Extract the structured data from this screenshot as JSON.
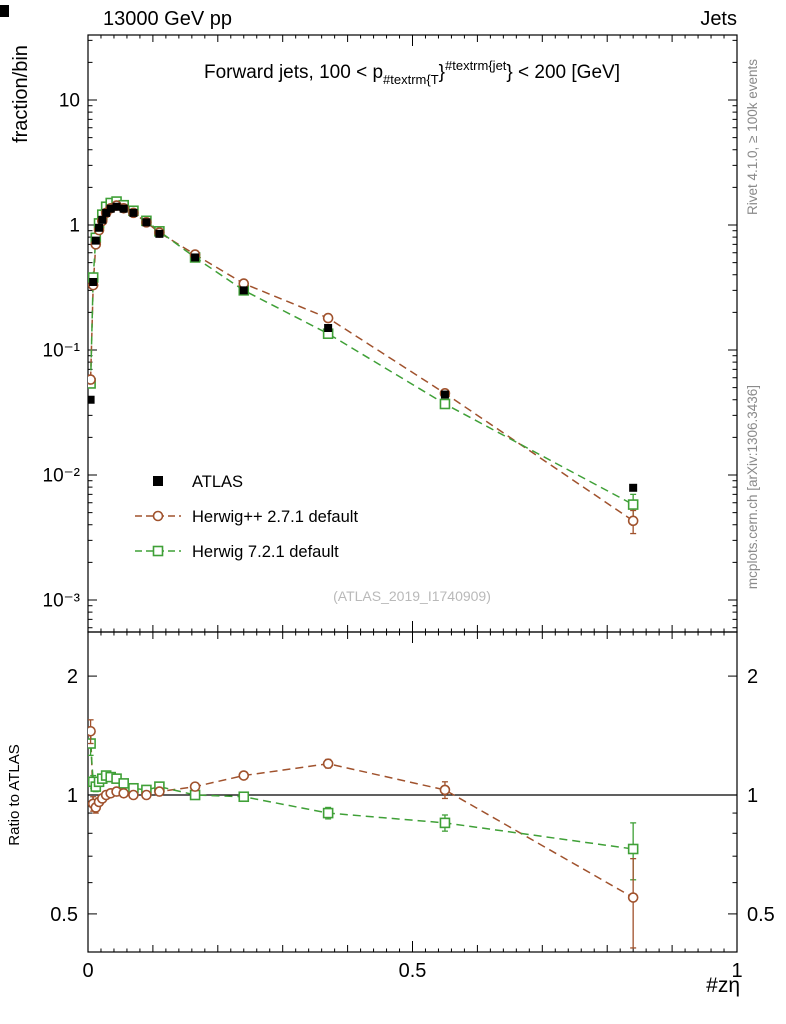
{
  "header": {
    "left": "13000 GeV pp",
    "right": "Jets"
  },
  "side_notes": {
    "top_right": "Rivet 4.1.0, ≥ 100k events",
    "bottom_right": "mcplots.cern.ch [arXiv:1306.3436]"
  },
  "watermark": "(ATLAS_2019_I1740909)",
  "plot_title": {
    "full": "Forward jets, 100 < p_{#textrm{T}}^{#textrm{jet}} < 200 [GeV]",
    "prefix": "Forward jets, 100 < p",
    "sub": "#textrm{T",
    "mid": "}",
    "sup": "#textrm{jet",
    "suffix": "} < 200 [GeV]"
  },
  "axes": {
    "top_ylabel": "fraction/bin",
    "ratio_ylabel": "Ratio to ATLAS",
    "xlabel": "#zη"
  },
  "chart_data": {
    "type": "line",
    "title": "Forward jets, 100 < p_{#textrm{T}}^{#textrm{jet}} < 200 [GeV]",
    "xlabel": "#zη",
    "ylabel": "fraction/bin",
    "ratio_ylabel": "Ratio to ATLAS",
    "legend_position": "middle-left",
    "grid": false,
    "x": [
      0.004,
      0.008,
      0.012,
      0.017,
      0.022,
      0.028,
      0.035,
      0.044,
      0.055,
      0.07,
      0.09,
      0.11,
      0.165,
      0.24,
      0.37,
      0.55,
      0.84
    ],
    "series": [
      {
        "name": "ATLAS",
        "color": "#000000",
        "marker": "square-filled",
        "line": "none",
        "values": [
          0.04,
          0.35,
          0.75,
          0.95,
          1.1,
          1.25,
          1.35,
          1.4,
          1.35,
          1.25,
          1.05,
          0.85,
          0.55,
          0.3,
          0.15,
          0.044,
          0.0079
        ],
        "errors": [
          0.001,
          0.008,
          0.015,
          0.018,
          0.02,
          0.022,
          0.024,
          0.025,
          0.024,
          0.022,
          0.02,
          0.016,
          0.01,
          0.006,
          0.004,
          0.0015,
          0.0004
        ]
      },
      {
        "name": "Herwig++ 2.7.1 default",
        "color": "#A0522D",
        "marker": "circle-open",
        "line": "dashed",
        "values": [
          0.058,
          0.33,
          0.7,
          0.91,
          1.08,
          1.25,
          1.36,
          1.43,
          1.36,
          1.25,
          1.05,
          0.87,
          0.58,
          0.34,
          0.18,
          0.045,
          0.0043
        ],
        "errors": [
          0.004,
          0.012,
          0.018,
          0.02,
          0.022,
          0.024,
          0.025,
          0.026,
          0.025,
          0.023,
          0.021,
          0.017,
          0.011,
          0.007,
          0.004,
          0.002,
          0.0009
        ]
      },
      {
        "name": "Herwig 7.2.1 default",
        "color": "#3FA037",
        "marker": "square-open",
        "line": "dashed",
        "values": [
          0.054,
          0.38,
          0.79,
          1.03,
          1.21,
          1.4,
          1.5,
          1.54,
          1.44,
          1.3,
          1.08,
          0.89,
          0.55,
          0.3,
          0.135,
          0.037,
          0.0058
        ],
        "errors": [
          0.004,
          0.012,
          0.018,
          0.02,
          0.022,
          0.024,
          0.026,
          0.027,
          0.025,
          0.023,
          0.021,
          0.017,
          0.011,
          0.007,
          0.004,
          0.002,
          0.0012
        ]
      }
    ],
    "ratio_reference": "ATLAS",
    "ratio_series": [
      {
        "name": "Herwig++ 2.7.1 default",
        "color": "#A0522D",
        "marker": "circle-open",
        "line": "dashed",
        "values": [
          1.45,
          0.95,
          0.93,
          0.96,
          0.98,
          1.0,
          1.01,
          1.02,
          1.01,
          1.0,
          1.0,
          1.02,
          1.05,
          1.12,
          1.2,
          1.03,
          0.55
        ],
        "errors": [
          0.1,
          0.04,
          0.03,
          0.02,
          0.02,
          0.02,
          0.02,
          0.02,
          0.02,
          0.02,
          0.02,
          0.02,
          0.02,
          0.02,
          0.03,
          0.05,
          0.14
        ]
      },
      {
        "name": "Herwig 7.2.1 default",
        "color": "#3FA037",
        "marker": "square-open",
        "line": "dashed",
        "values": [
          1.35,
          1.08,
          1.05,
          1.08,
          1.1,
          1.12,
          1.11,
          1.1,
          1.07,
          1.04,
          1.03,
          1.05,
          1.0,
          0.99,
          0.9,
          0.85,
          0.73
        ],
        "errors": [
          0.09,
          0.04,
          0.03,
          0.02,
          0.02,
          0.02,
          0.02,
          0.02,
          0.02,
          0.02,
          0.02,
          0.02,
          0.02,
          0.02,
          0.03,
          0.04,
          0.12
        ]
      }
    ],
    "top_axis": {
      "scale": "log",
      "range": [
        0.00056,
        33
      ],
      "ticks": [
        {
          "v": 10,
          "label": "10"
        },
        {
          "v": 1,
          "label": "1"
        },
        {
          "v": 0.1,
          "label": "10⁻¹"
        },
        {
          "v": 0.01,
          "label": "10⁻²"
        },
        {
          "v": 0.001,
          "label": "10⁻³"
        }
      ]
    },
    "ratio_axis": {
      "scale": "log",
      "range": [
        0.4,
        2.59
      ],
      "reference_line": 1,
      "ticks": [
        {
          "v": 2,
          "label": "2"
        },
        {
          "v": 1,
          "label": "1"
        },
        {
          "v": 0.5,
          "label": "0.5"
        }
      ]
    },
    "x_axis": {
      "scale": "linear",
      "range": [
        0,
        1
      ],
      "ticks": [
        {
          "v": 0,
          "label": "0"
        },
        {
          "v": 0.5,
          "label": "0.5"
        },
        {
          "v": 1,
          "label": "1"
        }
      ]
    }
  }
}
